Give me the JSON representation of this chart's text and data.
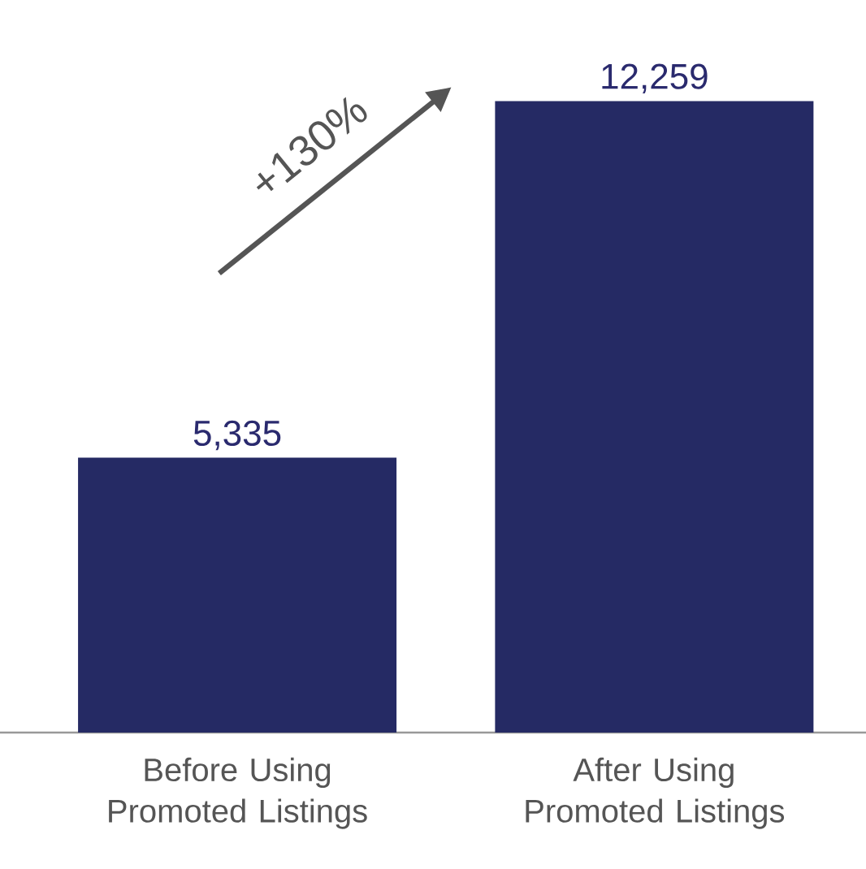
{
  "chart_data": {
    "type": "bar",
    "categories": [
      "Before Using Promoted Listings",
      "After Using Promoted Listings"
    ],
    "values": [
      5335,
      12259
    ],
    "value_labels": [
      "5,335",
      "12,259"
    ],
    "color": "#252a64",
    "annotations": [
      "+130%"
    ]
  }
}
